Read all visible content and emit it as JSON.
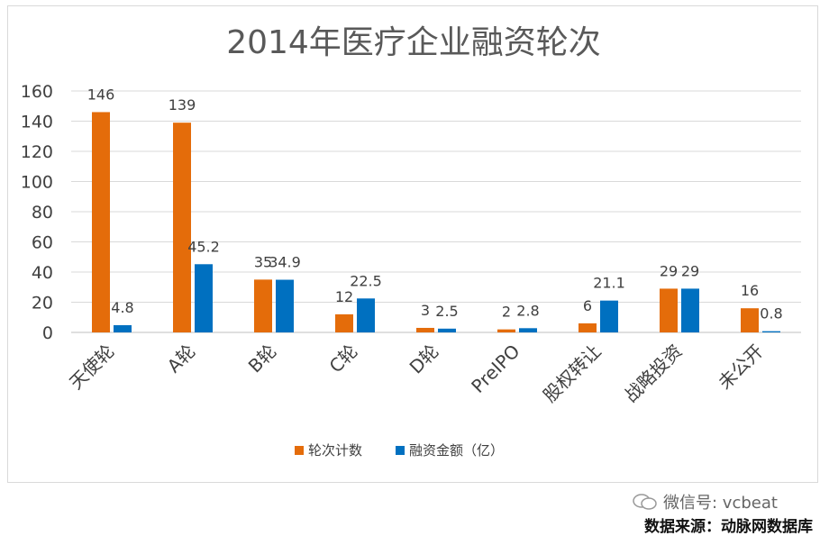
{
  "chart_data": {
    "type": "bar",
    "title": "2014年医疗企业融资轮次",
    "categories": [
      "天使轮",
      "A轮",
      "B轮",
      "C轮",
      "D轮",
      "PreIPO",
      "股权转让",
      "战略投资",
      "未公开"
    ],
    "series": [
      {
        "name": "轮次计数",
        "color": "#E46C0A",
        "values": [
          146,
          139,
          35,
          12,
          3,
          2,
          6,
          29,
          16
        ],
        "labels": [
          "146",
          "139",
          "35",
          "12",
          "3",
          "2",
          "6",
          "29",
          "16"
        ]
      },
      {
        "name": "融资金额（亿）",
        "color": "#0070C0",
        "values": [
          4.8,
          45.2,
          34.9,
          22.5,
          2.5,
          2.8,
          21.1,
          29,
          0.8
        ],
        "labels": [
          "4.8",
          "45.2",
          "34.9",
          "22.5",
          "2.5",
          "2.8",
          "21.1",
          "29",
          "0.8"
        ]
      }
    ],
    "ylim": [
      0,
      160
    ],
    "yticks": [
      0,
      20,
      40,
      60,
      80,
      100,
      120,
      140,
      160
    ],
    "grid": true,
    "legend_position": "bottom"
  },
  "footer": {
    "wechat": "微信号: vcbeat",
    "source": "数据来源：动脉网数据库"
  }
}
